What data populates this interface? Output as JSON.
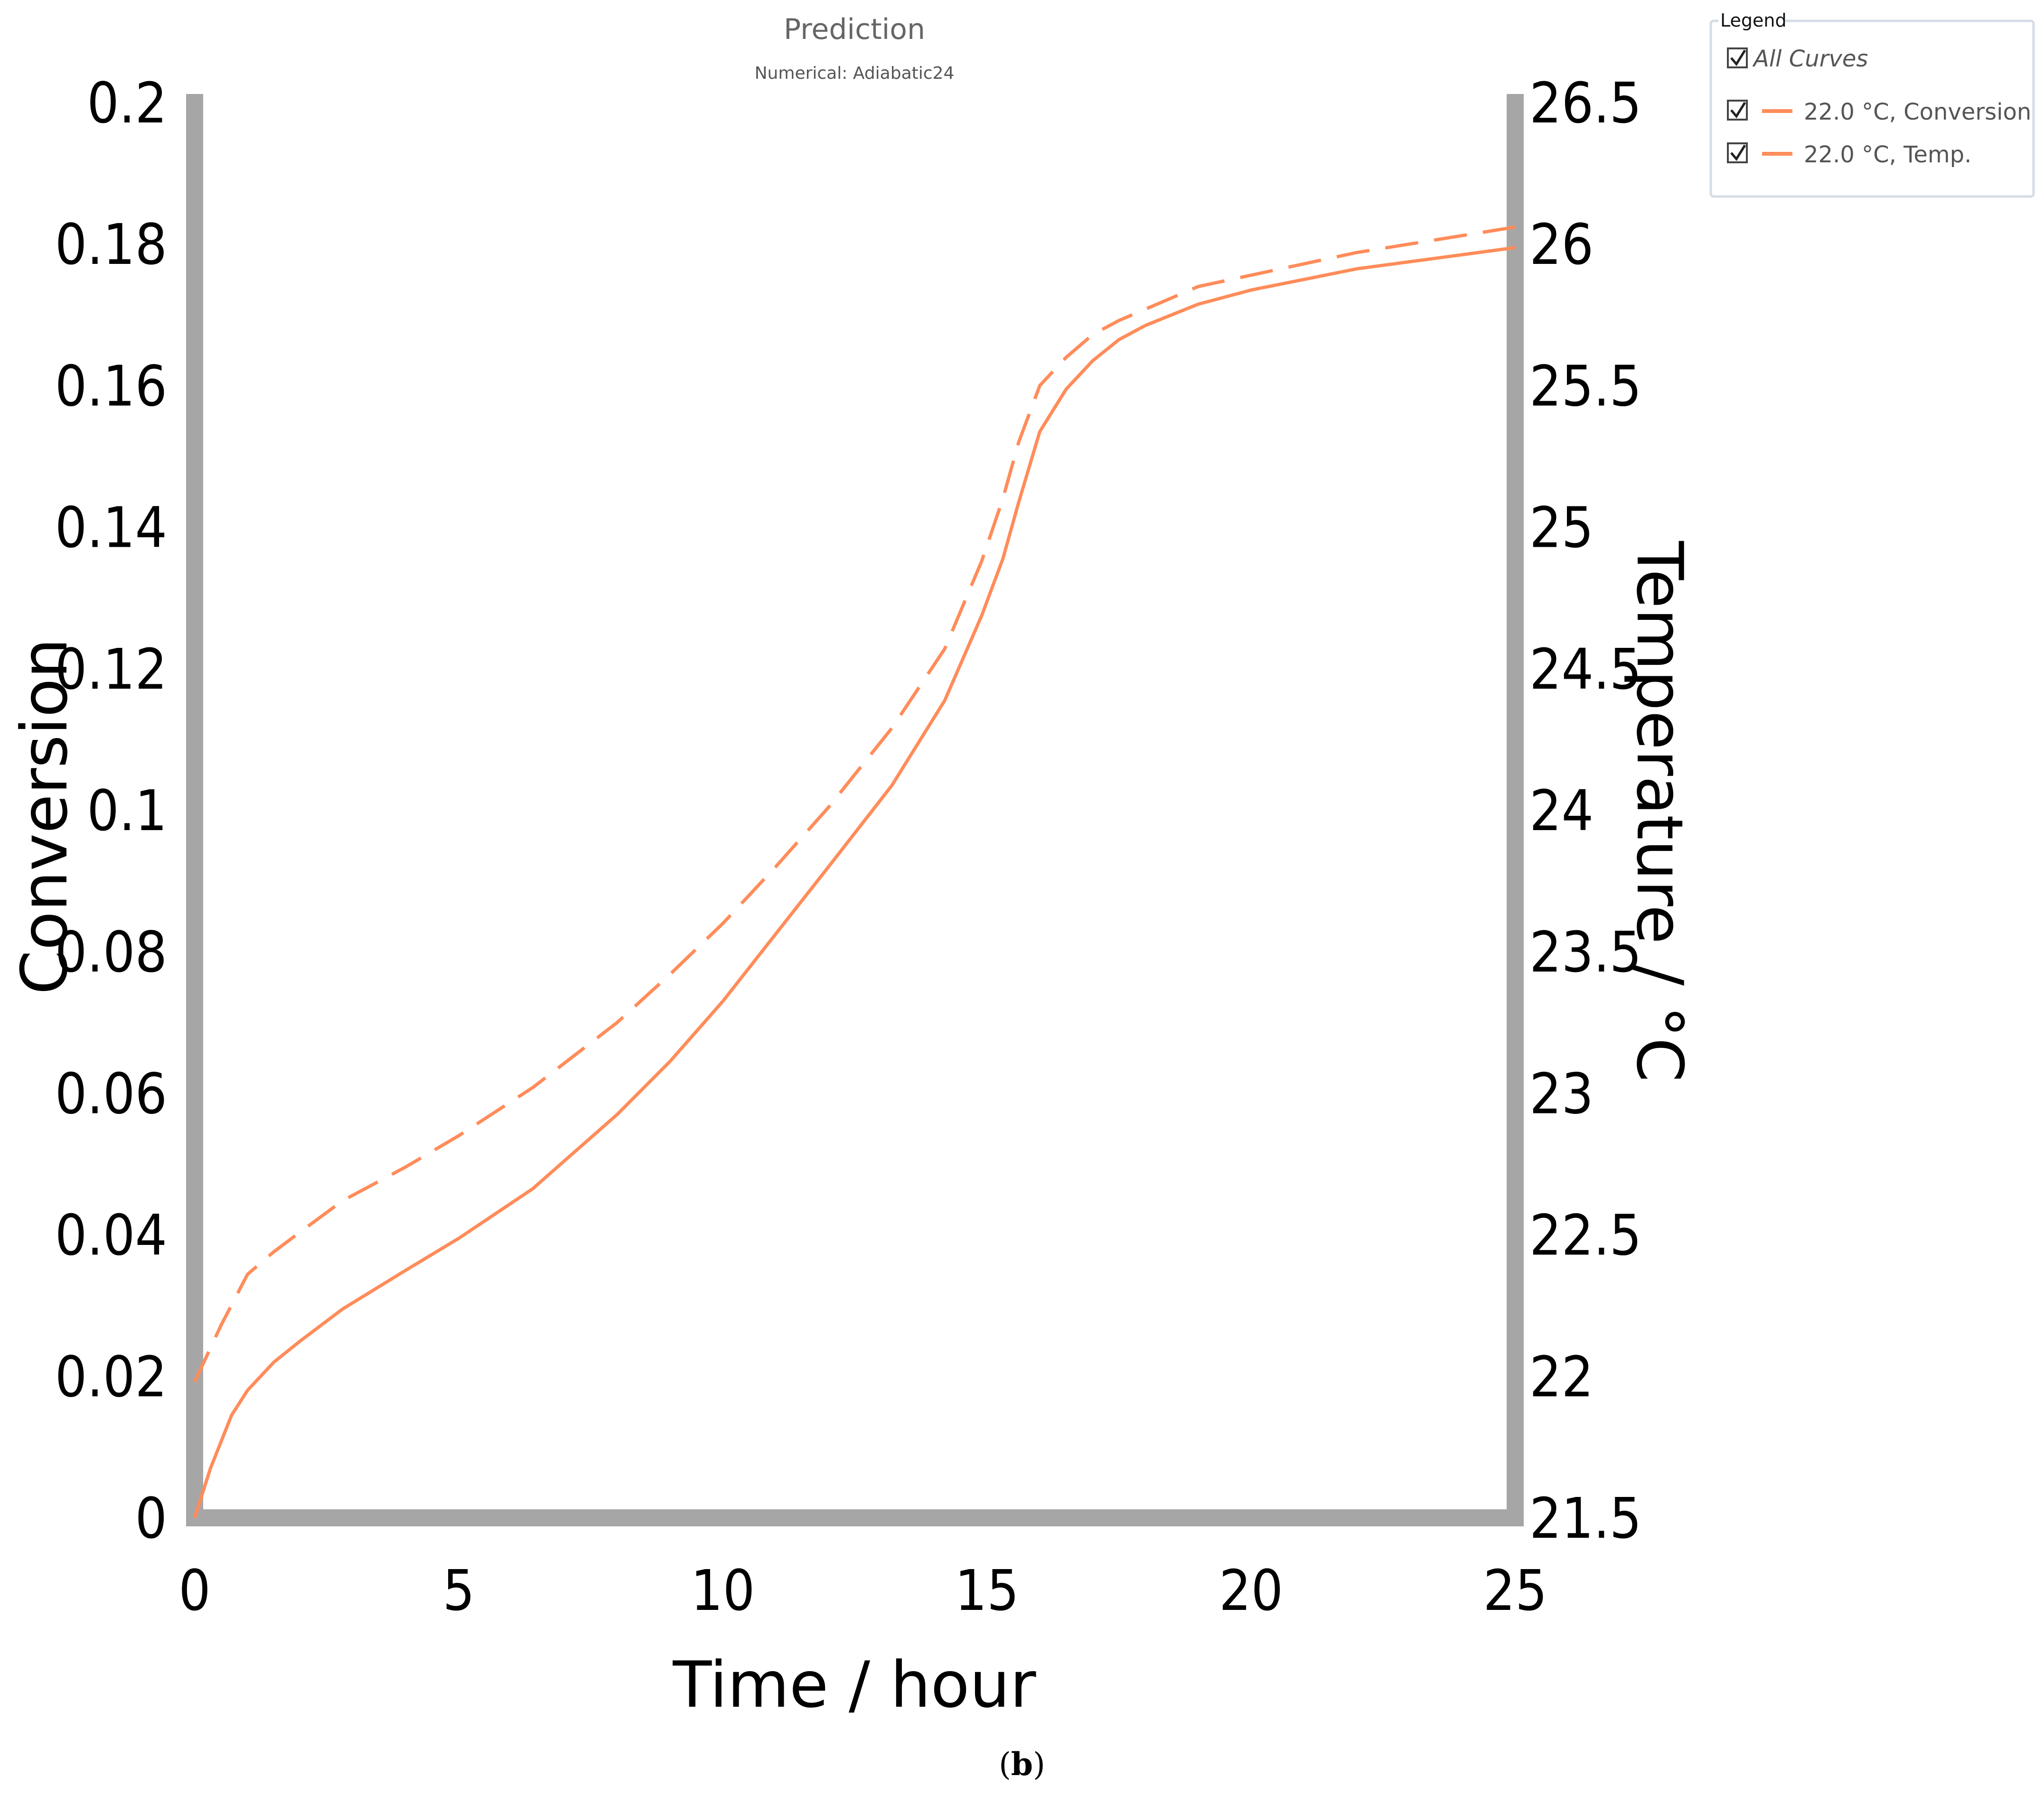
{
  "chart_data": {
    "type": "line",
    "title": "Prediction",
    "subtitle": "Numerical: Adiabatic24",
    "xlabel": "Time / hour",
    "ylabel": "Conversion",
    "y2label": "Temperature / °C",
    "xlim": [
      0,
      25
    ],
    "ylim": [
      0,
      0.2
    ],
    "y2lim": [
      21.5,
      26.5
    ],
    "x_ticks": [
      "0",
      "5",
      "10",
      "15",
      "20",
      "25"
    ],
    "y_ticks": [
      "0",
      "0.02",
      "0.04",
      "0.06",
      "0.08",
      "0.1",
      "0.12",
      "0.14",
      "0.16",
      "0.18",
      "0.2"
    ],
    "y2_ticks": [
      "21.5",
      "22",
      "22.5",
      "23",
      "23.5",
      "24",
      "24.5",
      "25",
      "25.5",
      "26",
      "26.5"
    ],
    "grid": false,
    "legend_position": "top-right",
    "series": [
      {
        "name": "22.0 °C, Conversion",
        "axis": "left",
        "style": "solid",
        "color": "#ff8c5a",
        "x": [
          0,
          0.3,
          0.7,
          1.0,
          1.5,
          2.0,
          2.8,
          4.0,
          5.0,
          6.4,
          8.0,
          9.0,
          10.0,
          11.0,
          12.0,
          13.2,
          14.2,
          14.9,
          15.3,
          15.6,
          16.0,
          16.5,
          17.0,
          17.5,
          18.0,
          19.0,
          20.0,
          21.0,
          22.0,
          23.0,
          24.0,
          25.0
        ],
        "values": [
          0.0,
          0.007,
          0.0145,
          0.018,
          0.022,
          0.025,
          0.0295,
          0.035,
          0.0395,
          0.0465,
          0.057,
          0.0645,
          0.073,
          0.0825,
          0.092,
          0.1035,
          0.1155,
          0.1275,
          0.1355,
          0.1435,
          0.1535,
          0.1595,
          0.1635,
          0.1665,
          0.1685,
          0.1715,
          0.1735,
          0.175,
          0.1765,
          0.1775,
          0.1785,
          0.1795
        ]
      },
      {
        "name": "22.0 °C, Temp.",
        "axis": "right",
        "style": "dashed",
        "color": "#ff8c5a",
        "x": [
          0,
          0.5,
          1.0,
          1.5,
          2.0,
          2.8,
          4.0,
          5.0,
          6.4,
          8.0,
          9.0,
          10.0,
          11.0,
          12.0,
          13.2,
          14.2,
          14.9,
          15.3,
          15.6,
          16.0,
          16.5,
          17.0,
          17.5,
          18.0,
          19.0,
          20.0,
          21.0,
          22.0,
          23.0,
          24.0,
          25.0
        ],
        "values": [
          21.98,
          22.18,
          22.36,
          22.44,
          22.51,
          22.62,
          22.74,
          22.85,
          23.02,
          23.25,
          23.42,
          23.6,
          23.8,
          24.01,
          24.29,
          24.57,
          24.88,
          25.1,
          25.3,
          25.5,
          25.6,
          25.68,
          25.73,
          25.77,
          25.85,
          25.89,
          25.93,
          25.97,
          26.0,
          26.03,
          26.06
        ]
      }
    ]
  },
  "legend": {
    "heading": "Legend",
    "all_label": "All Curves",
    "items": [
      {
        "label": "22.0 °C, Conversion",
        "color": "#ff8c5a",
        "checked": true
      },
      {
        "label": "22.0 °C, Temp.",
        "color": "#ff8c5a",
        "checked": true
      }
    ],
    "all_checked": true
  },
  "caption": {
    "text_open": "(",
    "text_bold": "b",
    "text_close": ")"
  },
  "colors": {
    "axis": "#a6a6a6",
    "series": "#ff8c5a",
    "legend_border": "#d4dde6"
  }
}
